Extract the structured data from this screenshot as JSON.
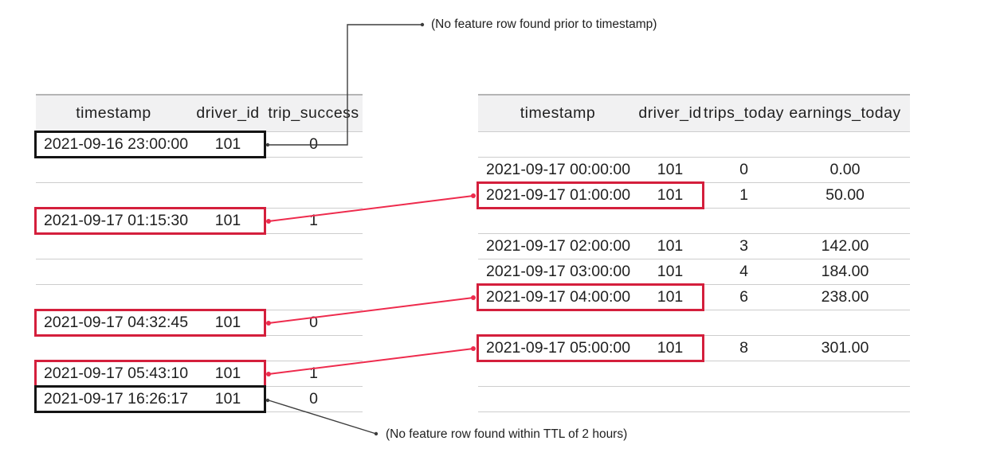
{
  "diagram_title": "point-in-time-join",
  "annotations": {
    "top": {
      "text": "(No feature row found prior to timestamp)",
      "left_row": 0
    },
    "bottom": {
      "text": "(No feature row found within TTL of 2 hours)",
      "left_row": 10
    }
  },
  "left_table": {
    "columns": [
      "timestamp",
      "driver_id",
      "trip_success"
    ],
    "rows": [
      {
        "timestamp": "2021-09-16 23:00:00",
        "driver_id": "101",
        "values": [
          "0"
        ],
        "box": "black"
      },
      {},
      {},
      {
        "timestamp": "2021-09-17 01:15:30",
        "driver_id": "101",
        "values": [
          "1"
        ],
        "box": "red"
      },
      {},
      {},
      {},
      {
        "timestamp": "2021-09-17 04:32:45",
        "driver_id": "101",
        "values": [
          "0"
        ],
        "box": "red"
      },
      {},
      {
        "timestamp": "2021-09-17 05:43:10",
        "driver_id": "101",
        "values": [
          "1"
        ],
        "box": "red"
      },
      {
        "timestamp": "2021-09-17 16:26:17",
        "driver_id": "101",
        "values": [
          "0"
        ],
        "box": "black"
      }
    ]
  },
  "right_table": {
    "columns": [
      "timestamp",
      "driver_id",
      "trips_today",
      "earnings_today"
    ],
    "rows": [
      {},
      {
        "timestamp": "2021-09-17 00:00:00",
        "driver_id": "101",
        "values": [
          "0",
          "0.00"
        ]
      },
      {
        "timestamp": "2021-09-17 01:00:00",
        "driver_id": "101",
        "values": [
          "1",
          "50.00"
        ],
        "box": "red"
      },
      {},
      {
        "timestamp": "2021-09-17 02:00:00",
        "driver_id": "101",
        "values": [
          "3",
          "142.00"
        ]
      },
      {
        "timestamp": "2021-09-17 03:00:00",
        "driver_id": "101",
        "values": [
          "4",
          "184.00"
        ]
      },
      {
        "timestamp": "2021-09-17 04:00:00",
        "driver_id": "101",
        "values": [
          "6",
          "238.00"
        ],
        "box": "red"
      },
      {},
      {
        "timestamp": "2021-09-17 05:00:00",
        "driver_id": "101",
        "values": [
          "8",
          "301.00"
        ],
        "box": "red"
      },
      {},
      {}
    ]
  },
  "connections": [
    {
      "left_row": 3,
      "right_row": 2,
      "color": "red"
    },
    {
      "left_row": 7,
      "right_row": 6,
      "color": "red"
    },
    {
      "left_row": 9,
      "right_row": 8,
      "color": "red"
    }
  ],
  "colors": {
    "accent_red": "#d41f3c",
    "line_red": "#ee2b4d",
    "line_black": "#3d3d3d",
    "box_black": "#141414",
    "header_bg": "#f1f1f2",
    "divider": "#cdcdcd",
    "text": "#1f1f1f"
  }
}
